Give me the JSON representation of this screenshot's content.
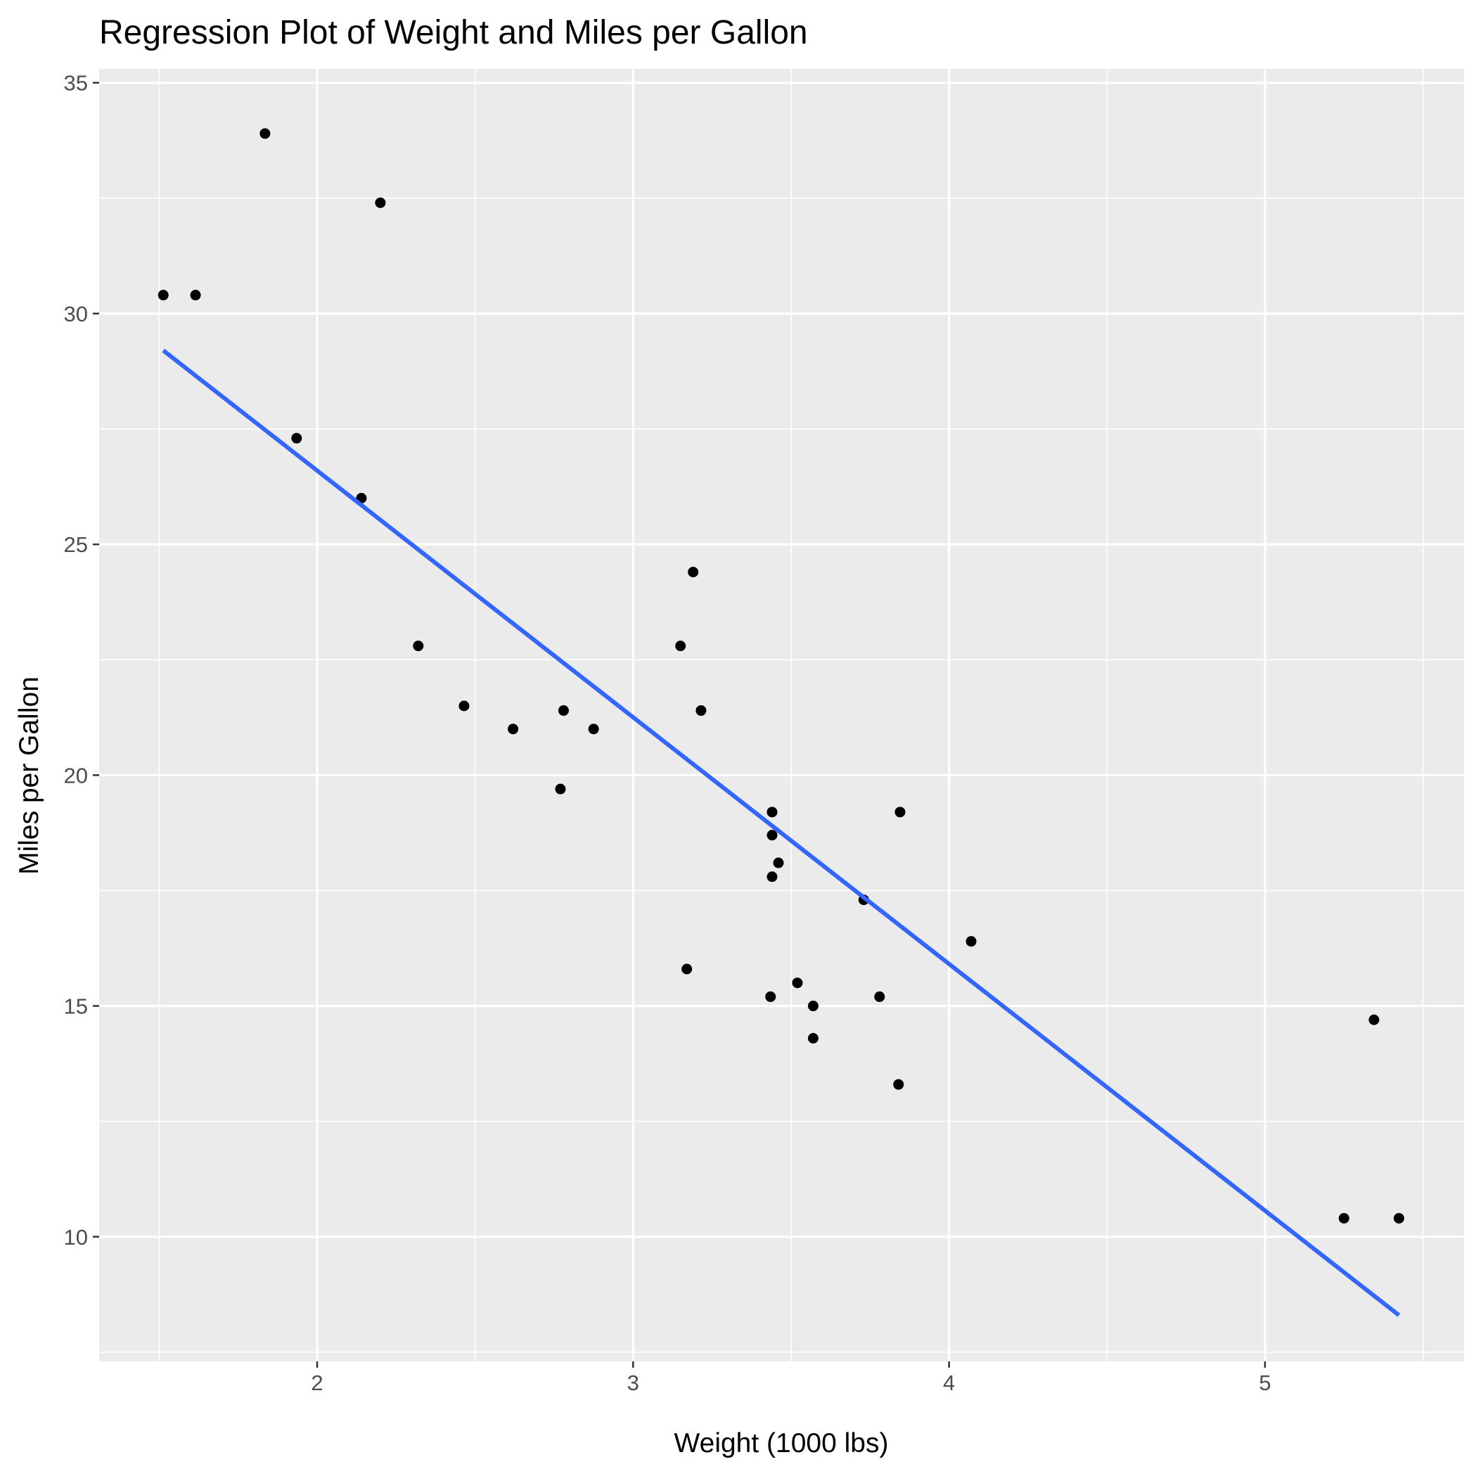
{
  "chart_data": {
    "type": "scatter",
    "title": "Regression Plot of Weight and Miles per Gallon",
    "xlabel": "Weight (1000 lbs)",
    "ylabel": "Miles per Gallon",
    "xlim": [
      1.31,
      5.63
    ],
    "ylim": [
      7.3,
      35.3
    ],
    "x_ticks": [
      2,
      3,
      4,
      5
    ],
    "y_ticks": [
      10,
      15,
      20,
      25,
      30,
      35
    ],
    "grid": true,
    "panel_background": "#ebebeb",
    "grid_color": "#ffffff",
    "point_color": "#000000",
    "line_color": "#3366ff",
    "points": [
      {
        "x": 2.62,
        "y": 21.0
      },
      {
        "x": 2.875,
        "y": 21.0
      },
      {
        "x": 2.32,
        "y": 22.8
      },
      {
        "x": 3.215,
        "y": 21.4
      },
      {
        "x": 3.44,
        "y": 18.7
      },
      {
        "x": 3.46,
        "y": 18.1
      },
      {
        "x": 3.57,
        "y": 14.3
      },
      {
        "x": 3.19,
        "y": 24.4
      },
      {
        "x": 3.15,
        "y": 22.8
      },
      {
        "x": 3.44,
        "y": 19.2
      },
      {
        "x": 3.44,
        "y": 17.8
      },
      {
        "x": 4.07,
        "y": 16.4
      },
      {
        "x": 3.73,
        "y": 17.3
      },
      {
        "x": 3.78,
        "y": 15.2
      },
      {
        "x": 5.25,
        "y": 10.4
      },
      {
        "x": 5.424,
        "y": 10.4
      },
      {
        "x": 5.345,
        "y": 14.7
      },
      {
        "x": 2.2,
        "y": 32.4
      },
      {
        "x": 1.615,
        "y": 30.4
      },
      {
        "x": 1.835,
        "y": 33.9
      },
      {
        "x": 2.465,
        "y": 21.5
      },
      {
        "x": 3.52,
        "y": 15.5
      },
      {
        "x": 3.435,
        "y": 15.2
      },
      {
        "x": 3.84,
        "y": 13.3
      },
      {
        "x": 3.845,
        "y": 19.2
      },
      {
        "x": 1.935,
        "y": 27.3
      },
      {
        "x": 2.14,
        "y": 26.0
      },
      {
        "x": 1.513,
        "y": 30.4
      },
      {
        "x": 3.17,
        "y": 15.8
      },
      {
        "x": 2.77,
        "y": 19.7
      },
      {
        "x": 3.57,
        "y": 15.0
      },
      {
        "x": 2.78,
        "y": 21.4
      }
    ],
    "regression": {
      "x": [
        1.513,
        5.424
      ],
      "y": [
        29.2,
        8.3
      ]
    }
  }
}
